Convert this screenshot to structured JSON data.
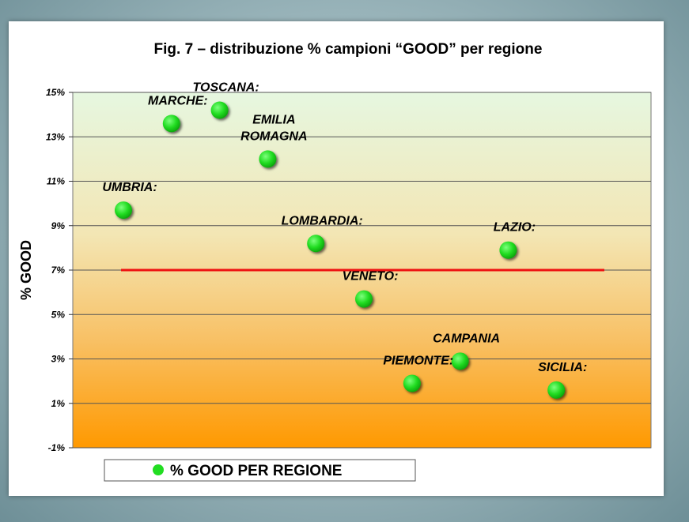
{
  "chart_data": {
    "type": "scatter",
    "title": "Fig. 7 – distribuzione % campioni “GOOD” per regione",
    "ylabel": "% GOOD",
    "xlabel": "",
    "ylim": [
      -1,
      15
    ],
    "yticks": [
      -1,
      1,
      3,
      5,
      7,
      9,
      11,
      13,
      15
    ],
    "ytick_labels": [
      "-1%",
      "1%",
      "3%",
      "5%",
      "7%",
      "9%",
      "11%",
      "13%",
      "15%"
    ],
    "grid": true,
    "legend_position": "bottom",
    "series": [
      {
        "name": "% GOOD PER REGIONE",
        "color": "#22dd22",
        "points": [
          {
            "label_lines": [
              "UMBRIA:"
            ],
            "x": 1,
            "y": 9.7
          },
          {
            "label_lines": [
              "MARCHE:"
            ],
            "x": 2,
            "y": 13.6
          },
          {
            "label_lines": [
              "TOSCANA:"
            ],
            "x": 3,
            "y": 14.2
          },
          {
            "label_lines": [
              "EMILIA",
              "ROMAGNA"
            ],
            "x": 4,
            "y": 12.0
          },
          {
            "label_lines": [
              "LOMBARDIA:"
            ],
            "x": 5,
            "y": 8.2
          },
          {
            "label_lines": [
              "VENETO:"
            ],
            "x": 6,
            "y": 5.7
          },
          {
            "label_lines": [
              "PIEMONTE:"
            ],
            "x": 7,
            "y": 1.9
          },
          {
            "label_lines": [
              "CAMPANIA"
            ],
            "x": 8,
            "y": 2.9
          },
          {
            "label_lines": [
              "LAZIO:"
            ],
            "x": 9,
            "y": 7.9
          },
          {
            "label_lines": [
              "SICILIA:"
            ],
            "x": 10,
            "y": 1.6
          }
        ]
      }
    ],
    "reference_line": {
      "y": 7,
      "color": "#ee1111"
    },
    "background_gradient": {
      "top": "#e6f7e0",
      "bottom": "#ff9900"
    }
  }
}
